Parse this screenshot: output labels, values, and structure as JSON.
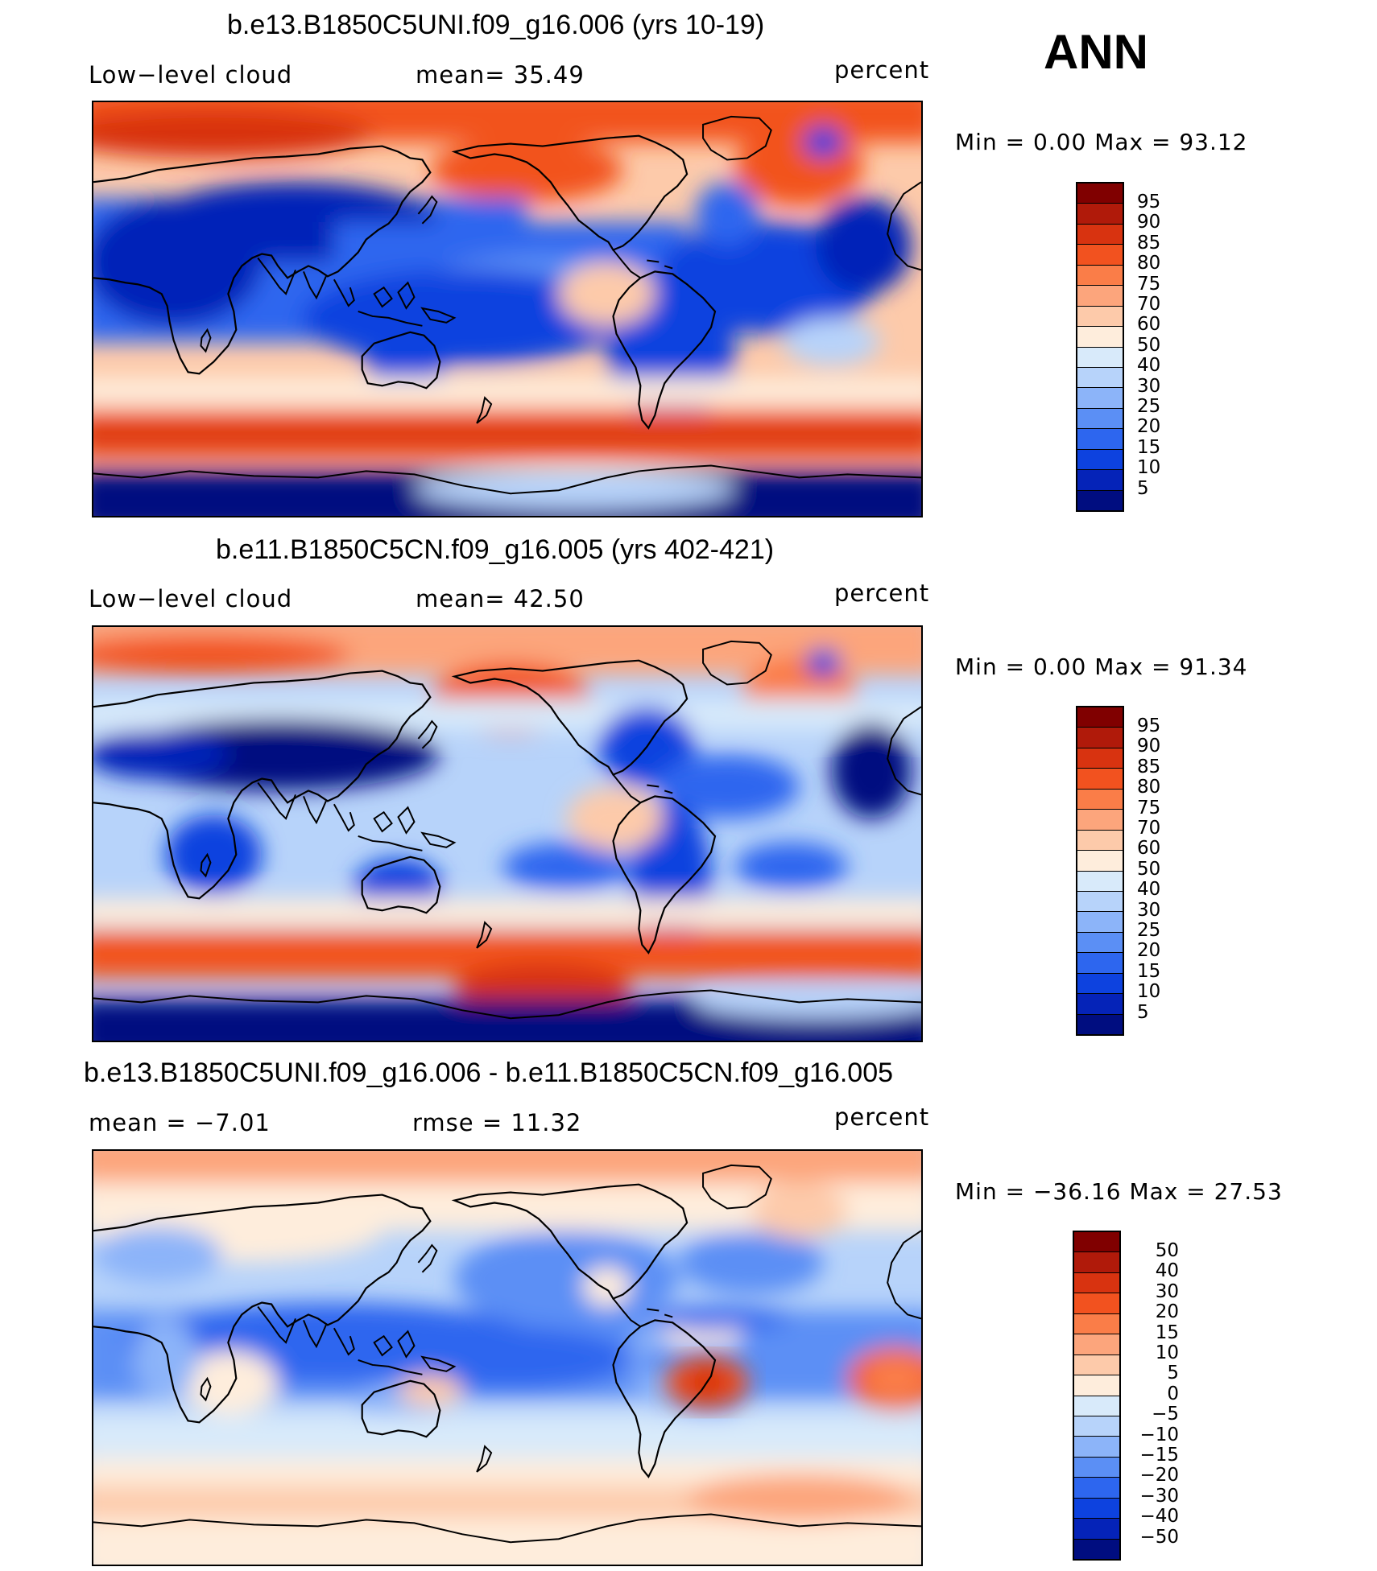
{
  "season": "ANN",
  "panels": [
    {
      "title": "b.e13.B1850C5UNI.f09_g16.006 (yrs 10-19)",
      "left_label": "Low−level cloud",
      "center_label": "mean=   35.49",
      "units": "percent",
      "minmax": "Min =     0.00  Max =    93.12",
      "colorbar_ticks": [
        "95",
        "90",
        "85",
        "80",
        "75",
        "70",
        "60",
        "50",
        "40",
        "30",
        "25",
        "20",
        "15",
        "10",
        "5"
      ]
    },
    {
      "title": "b.e11.B1850C5CN.f09_g16.005 (yrs 402-421)",
      "left_label": "Low−level cloud",
      "center_label": "mean=   42.50",
      "units": "percent",
      "minmax": "Min =     0.00  Max =    91.34",
      "colorbar_ticks": [
        "95",
        "90",
        "85",
        "80",
        "75",
        "70",
        "60",
        "50",
        "40",
        "30",
        "25",
        "20",
        "15",
        "10",
        "5"
      ]
    },
    {
      "title": "b.e13.B1850C5UNI.f09_g16.006 - b.e11.B1850C5CN.f09_g16.005",
      "left_label": "mean  =    −7.01",
      "center_label": "rmse  =    11.32",
      "units": "percent",
      "minmax": "Min  =  −36.16  Max  =    27.53",
      "colorbar_ticks": [
        "50",
        "40",
        "30",
        "20",
        "15",
        "10",
        "5",
        "0",
        "−5",
        "−10",
        "−15",
        "−20",
        "−30",
        "−40",
        "−50"
      ]
    }
  ],
  "colors": {
    "colorbar": [
      "#800000",
      "#b01a0a",
      "#d83310",
      "#f2521f",
      "#fa7d48",
      "#fca57c",
      "#fdcaaa",
      "#feeddc",
      "#d8eafa",
      "#b7d3fa",
      "#8cb4f9",
      "#5b8ff5",
      "#2d66ef",
      "#0d42df",
      "#0523b8",
      "#000d80"
    ],
    "land_outline": "#000000"
  }
}
